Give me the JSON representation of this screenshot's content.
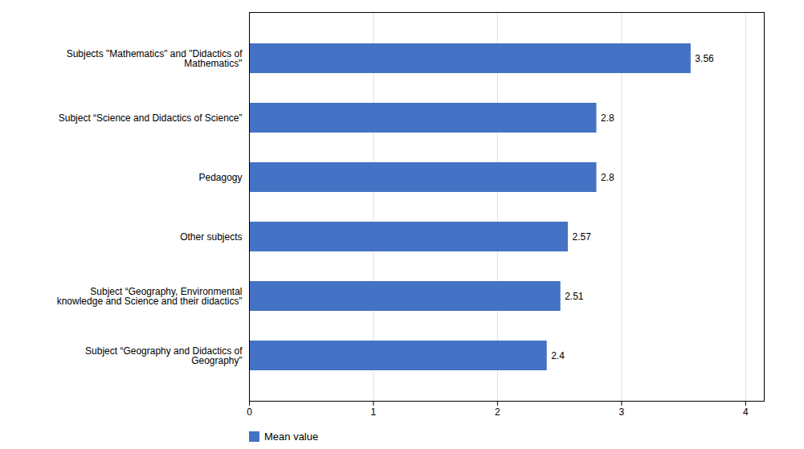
{
  "chart_data": {
    "type": "bar",
    "orientation": "horizontal",
    "categories": [
      "Subject “Geography and Didactics of\nGeography”",
      "Subject “Geography, Environmental\nknowledge and Science and their didactics”",
      "Other subjects",
      "Pedagogy",
      "Subject “Science and Didactics of Science”",
      "Subjects \"Mathematics\" and \"Didactics of\nMathematics\""
    ],
    "series": [
      {
        "name": "Mean value",
        "color": "#4472C4",
        "values": [
          2.4,
          2.51,
          2.57,
          2.8,
          2.8,
          3.56
        ]
      }
    ],
    "xlim": [
      0,
      4.15
    ],
    "xticks": [
      0,
      1,
      2,
      3,
      4
    ],
    "grid": true,
    "data_labels": true,
    "legend": "bottom"
  }
}
